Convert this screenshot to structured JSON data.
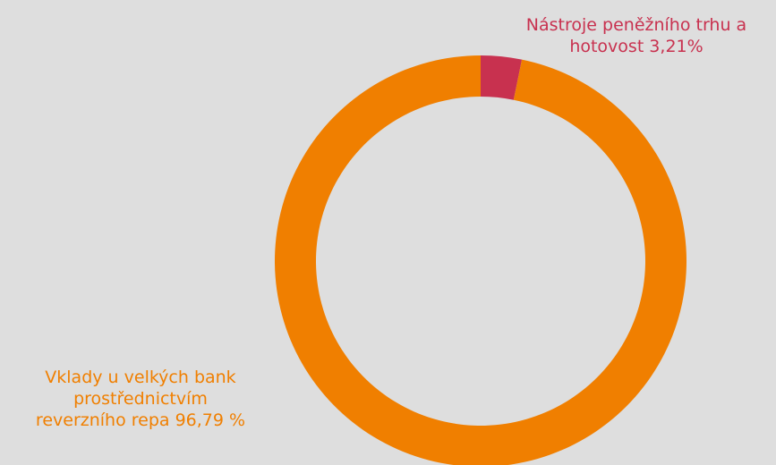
{
  "chart_data": {
    "type": "pie",
    "style": "donut",
    "slices": [
      {
        "label_lines": [
          "Nástroje peněžního trhu a",
          "hotovost 3,21%"
        ],
        "value": 3.21,
        "color": "#c8314f"
      },
      {
        "label_lines": [
          "Vklady u velkých bank",
          "prostřednictvím",
          "reverzního repa 96,79 %"
        ],
        "value": 96.79,
        "color": "#f07f00"
      }
    ],
    "start": "top",
    "direction": "clockwise"
  }
}
